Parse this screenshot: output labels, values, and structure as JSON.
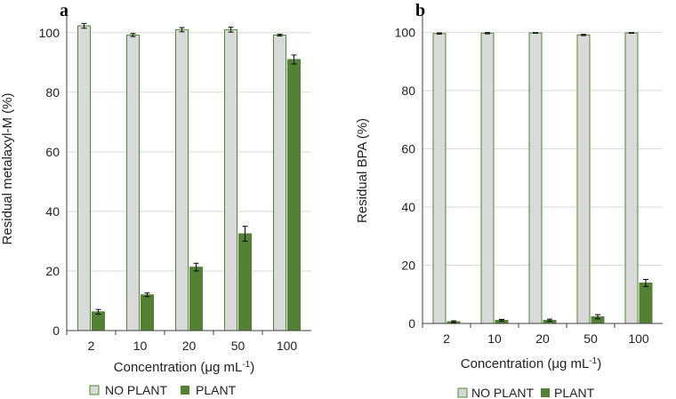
{
  "colors": {
    "no_plant_fill": "#d9d9d9",
    "no_plant_stroke": "#4e8a2e",
    "plant_fill": "#548235",
    "grid": "#d9d9d9",
    "axis": "#404040",
    "errorbar": "#000000"
  },
  "chart_data": [
    {
      "panel": "a",
      "type": "bar",
      "categories": [
        "2",
        "10",
        "20",
        "50",
        "100"
      ],
      "xlabel": "Concentration (μg mL-1)",
      "ylabel": "Residual metalaxyl-M (%)",
      "ylim": [
        0,
        105
      ],
      "yticks": [
        "0",
        "20",
        "40",
        "60",
        "80",
        "100"
      ],
      "yticks_values": [
        0,
        20,
        40,
        60,
        80,
        100
      ],
      "grid": true,
      "legend_position": "bottom",
      "series": [
        {
          "name": "NO PLANT",
          "values": [
            102.3,
            99.2,
            101.0,
            101.0,
            99.2
          ],
          "errors": [
            0.8,
            0.5,
            0.7,
            0.8,
            0.3
          ]
        },
        {
          "name": "PLANT",
          "values": [
            6.3,
            12.0,
            21.3,
            32.5,
            91.0
          ],
          "errors": [
            0.8,
            0.6,
            1.3,
            2.5,
            1.5
          ]
        }
      ]
    },
    {
      "panel": "b",
      "type": "bar",
      "categories": [
        "2",
        "10",
        "20",
        "50",
        "100"
      ],
      "xlabel": "Concentration (μg mL-1)",
      "ylabel": "Residual  BPA (%)",
      "ylim": [
        0,
        105
      ],
      "yticks": [
        "0",
        "20",
        "40",
        "60",
        "80",
        "100"
      ],
      "yticks_values": [
        0,
        20,
        40,
        60,
        80,
        100
      ],
      "grid": true,
      "legend_position": "bottom",
      "series": [
        {
          "name": "NO PLANT",
          "values": [
            99.6,
            99.7,
            99.8,
            99.1,
            99.8
          ],
          "errors": [
            0.2,
            0.2,
            0.1,
            0.2,
            0.1
          ]
        },
        {
          "name": "PLANT",
          "values": [
            0.6,
            1.1,
            1.1,
            2.3,
            13.9
          ],
          "errors": [
            0.3,
            0.3,
            0.4,
            0.7,
            1.2
          ]
        }
      ]
    }
  ]
}
